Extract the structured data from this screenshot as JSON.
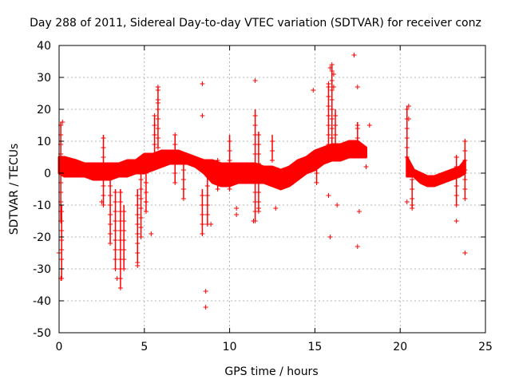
{
  "chart_data": {
    "type": "scatter",
    "title": "Day 288 of 2011, Sidereal Day-to-day VTEC variation (SDTVAR) for receiver conz",
    "xlabel": "GPS time / hours",
    "ylabel": "SDTVAR / TECUs",
    "xlim": [
      0,
      25
    ],
    "ylim": [
      -50,
      40
    ],
    "xticks": [
      "0",
      "5",
      "10",
      "15",
      "20",
      "25"
    ],
    "xtick_values": [
      0,
      5,
      10,
      15,
      20,
      25
    ],
    "yticks": [
      "40",
      "30",
      "20",
      "10",
      "0",
      "-10",
      "-20",
      "-30",
      "-40",
      "-50"
    ],
    "ytick_values": [
      40,
      30,
      20,
      10,
      0,
      -10,
      -20,
      -30,
      -40,
      -50
    ],
    "grid": true,
    "marker": "+",
    "color": "#ff0000",
    "band_segments": [
      {
        "name": "band-0",
        "points": [
          [
            0.0,
            0,
            5
          ],
          [
            0.3,
            -1,
            5
          ],
          [
            1,
            -1,
            4
          ],
          [
            1.5,
            -1,
            3
          ],
          [
            2,
            -2,
            3
          ],
          [
            2.5,
            -2,
            3
          ],
          [
            3,
            -2,
            3
          ],
          [
            3.5,
            -1,
            3
          ],
          [
            4,
            -1,
            4
          ],
          [
            4.5,
            0,
            4
          ],
          [
            5,
            0,
            6
          ],
          [
            5.5,
            1,
            6
          ],
          [
            6,
            2,
            7
          ],
          [
            6.5,
            3,
            7
          ],
          [
            7,
            3,
            7
          ],
          [
            7.5,
            3,
            6
          ],
          [
            8,
            2,
            5
          ],
          [
            8.5,
            0,
            4
          ],
          [
            9,
            -3,
            4
          ],
          [
            9.5,
            -4,
            3
          ],
          [
            10,
            -4,
            3
          ],
          [
            10.5,
            -3,
            3
          ],
          [
            11,
            -3,
            3
          ],
          [
            11.5,
            -3,
            3
          ],
          [
            12,
            -3,
            2
          ],
          [
            12.5,
            -4,
            2
          ],
          [
            13,
            -5,
            1
          ],
          [
            13.5,
            -4,
            2
          ],
          [
            14,
            -2,
            4
          ],
          [
            14.5,
            0,
            5
          ],
          [
            15,
            1,
            7
          ],
          [
            15.5,
            3,
            8
          ],
          [
            16,
            4,
            9
          ],
          [
            16.5,
            4,
            9
          ],
          [
            17,
            5,
            10
          ],
          [
            17.5,
            5,
            10
          ],
          [
            18,
            5,
            8
          ]
        ]
      },
      {
        "name": "band-1",
        "points": [
          [
            20.4,
            -1,
            5
          ],
          [
            20.8,
            -1,
            1
          ],
          [
            21.2,
            -3,
            0
          ],
          [
            21.6,
            -4,
            -1
          ],
          [
            22,
            -4,
            -1
          ],
          [
            22.5,
            -3,
            0
          ],
          [
            23,
            -2,
            1
          ],
          [
            23.5,
            -1,
            2
          ],
          [
            23.8,
            0,
            4
          ]
        ]
      }
    ],
    "spikes": [
      {
        "x": 0.1,
        "y_from": -15,
        "y_to": 16
      },
      {
        "x": 0.15,
        "y_from": -33,
        "y_to": -10
      },
      {
        "x": 2.6,
        "y_from": -10,
        "y_to": 12
      },
      {
        "x": 3.0,
        "y_from": -22,
        "y_to": 0
      },
      {
        "x": 3.3,
        "y_from": -30,
        "y_to": -5
      },
      {
        "x": 3.6,
        "y_from": -36,
        "y_to": -5
      },
      {
        "x": 3.8,
        "y_from": -30,
        "y_to": -10
      },
      {
        "x": 4.6,
        "y_from": -28,
        "y_to": -5
      },
      {
        "x": 4.8,
        "y_from": -20,
        "y_to": 0
      },
      {
        "x": 5.1,
        "y_from": -12,
        "y_to": 5
      },
      {
        "x": 5.6,
        "y_from": 6,
        "y_to": 18
      },
      {
        "x": 5.8,
        "y_from": 8,
        "y_to": 27
      },
      {
        "x": 6.8,
        "y_from": -3,
        "y_to": 12
      },
      {
        "x": 7.3,
        "y_from": -8,
        "y_to": 3
      },
      {
        "x": 8.4,
        "y_from": -19,
        "y_to": -5
      },
      {
        "x": 8.7,
        "y_from": -16,
        "y_to": 0
      },
      {
        "x": 9.3,
        "y_from": -5,
        "y_to": 4
      },
      {
        "x": 10.0,
        "y_from": -5,
        "y_to": 12
      },
      {
        "x": 11.5,
        "y_from": -15,
        "y_to": 20
      },
      {
        "x": 11.7,
        "y_from": -12,
        "y_to": 13
      },
      {
        "x": 12.5,
        "y_from": 4,
        "y_to": 12
      },
      {
        "x": 15.1,
        "y_from": -3,
        "y_to": 5
      },
      {
        "x": 15.8,
        "y_from": 6,
        "y_to": 28
      },
      {
        "x": 16.0,
        "y_from": 8,
        "y_to": 34
      },
      {
        "x": 16.2,
        "y_from": 6,
        "y_to": 20
      },
      {
        "x": 17.5,
        "y_from": 8,
        "y_to": 16
      },
      {
        "x": 20.4,
        "y_from": 5,
        "y_to": 21
      },
      {
        "x": 20.7,
        "y_from": -11,
        "y_to": -2
      },
      {
        "x": 23.3,
        "y_from": -10,
        "y_to": 5
      },
      {
        "x": 23.8,
        "y_from": -8,
        "y_to": 10
      }
    ],
    "outliers": [
      [
        0.0,
        -25
      ],
      [
        0.1,
        -33
      ],
      [
        2.5,
        -9
      ],
      [
        3.4,
        -33
      ],
      [
        4.6,
        -29
      ],
      [
        5.4,
        -19
      ],
      [
        5.8,
        27
      ],
      [
        5.8,
        22
      ],
      [
        8.4,
        28
      ],
      [
        8.4,
        18
      ],
      [
        8.6,
        -37
      ],
      [
        8.6,
        -42
      ],
      [
        8.7,
        -16
      ],
      [
        8.9,
        -16
      ],
      [
        8.4,
        -19
      ],
      [
        11.5,
        29
      ],
      [
        11.4,
        -15
      ],
      [
        11.7,
        -11
      ],
      [
        10.4,
        -11
      ],
      [
        10.4,
        -13
      ],
      [
        12.7,
        -11
      ],
      [
        15.8,
        -7
      ],
      [
        15.9,
        -20
      ],
      [
        16.3,
        -10
      ],
      [
        14.9,
        26
      ],
      [
        15.8,
        28
      ],
      [
        15.9,
        33
      ],
      [
        16.0,
        34
      ],
      [
        16.1,
        31
      ],
      [
        16.1,
        27
      ],
      [
        17.3,
        37
      ],
      [
        17.5,
        27
      ],
      [
        17.5,
        15
      ],
      [
        17.5,
        -23
      ],
      [
        17.6,
        -12
      ],
      [
        18.0,
        2
      ],
      [
        18.2,
        15
      ],
      [
        20.5,
        21
      ],
      [
        20.5,
        17
      ],
      [
        23.3,
        -15
      ],
      [
        23.8,
        -25
      ],
      [
        23.8,
        10
      ],
      [
        23.3,
        5
      ],
      [
        0.2,
        16
      ],
      [
        20.4,
        -9
      ],
      [
        20.7,
        -10
      ]
    ],
    "annotations": []
  }
}
